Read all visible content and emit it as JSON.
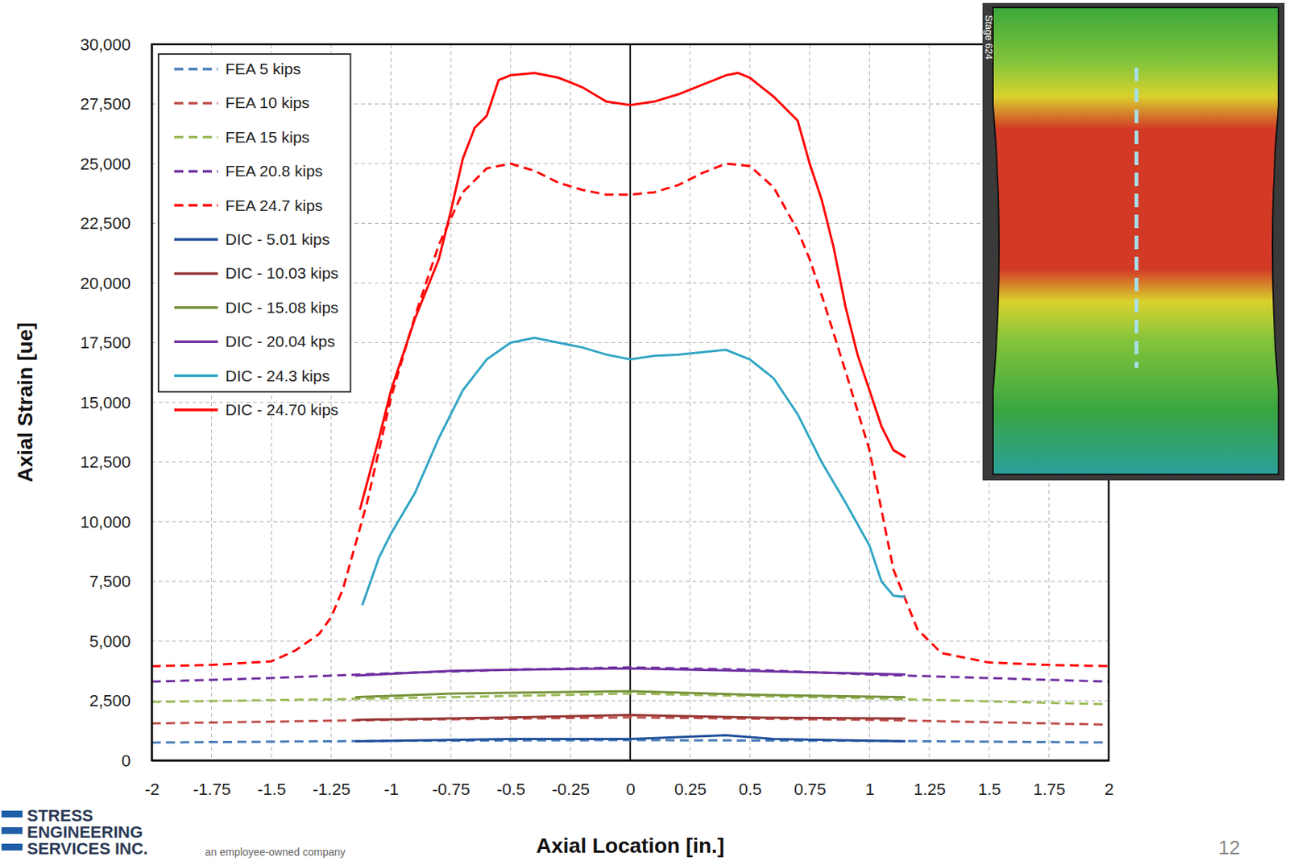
{
  "chart_data": {
    "type": "line",
    "x_label": "Axial Location [in.]",
    "y_label": "Axial Strain [ue]",
    "xlim": [
      -2,
      2
    ],
    "ylim": [
      0,
      30000
    ],
    "xticks": [
      -2,
      -1.75,
      -1.5,
      -1.25,
      -1,
      -0.75,
      -0.5,
      -0.25,
      0,
      0.25,
      0.5,
      0.75,
      1,
      1.25,
      1.5,
      1.75,
      2
    ],
    "yticks": [
      0,
      {
        "value": 2500,
        "label": "2,500"
      },
      {
        "value": 5000,
        "label": "5,000"
      },
      {
        "value": 7500,
        "label": "7,500"
      },
      {
        "value": 10000,
        "label": "10,000"
      },
      {
        "value": 12500,
        "label": "12,500"
      },
      {
        "value": 15000,
        "label": "15,000"
      },
      {
        "value": 17500,
        "label": "17,500"
      },
      {
        "value": 20000,
        "label": "20,000"
      },
      {
        "value": 22500,
        "label": "22,500"
      },
      {
        "value": 25000,
        "label": "25,000"
      },
      {
        "value": 27500,
        "label": "27,500"
      },
      {
        "value": 30000,
        "label": "30,000"
      }
    ],
    "grid": true,
    "legend": "top-left",
    "annotations": [
      "Stage 624",
      "STRESS",
      "ENGINEERING",
      "SERVICES INC.",
      "an employee-owned company",
      "12"
    ],
    "series": [
      {
        "name": "FEA 5 kips",
        "color": "#4a7ebb",
        "line_style": "dashed",
        "x": [
          -2,
          -1,
          0,
          1,
          2
        ],
        "values": [
          750,
          820,
          850,
          820,
          750
        ]
      },
      {
        "name": "FEA 10 kips",
        "color": "#c0504d",
        "line_style": "dashed",
        "x": [
          -2,
          -1,
          0,
          1,
          2
        ],
        "values": [
          1550,
          1700,
          1800,
          1700,
          1500
        ]
      },
      {
        "name": "FEA 15 kips",
        "color": "#9bbb59",
        "line_style": "dashed",
        "x": [
          -2,
          -1,
          0,
          1,
          2
        ],
        "values": [
          2450,
          2600,
          2800,
          2600,
          2350
        ]
      },
      {
        "name": "FEA 20.8 kips",
        "color": "#7030a0",
        "line_style": "dashed",
        "x": [
          -2,
          -1.5,
          -1,
          -0.5,
          0,
          0.5,
          1,
          1.5,
          2
        ],
        "values": [
          3300,
          3450,
          3650,
          3800,
          3900,
          3800,
          3600,
          3450,
          3300
        ]
      },
      {
        "name": "FEA 24.7 kips",
        "color": "#ff0000",
        "line_style": "dashed",
        "x": [
          -2,
          -1.75,
          -1.5,
          -1.4,
          -1.3,
          -1.25,
          -1.2,
          -1.1,
          -1,
          -0.9,
          -0.8,
          -0.7,
          -0.6,
          -0.5,
          -0.4,
          -0.3,
          -0.2,
          -0.1,
          0,
          0.1,
          0.2,
          0.3,
          0.4,
          0.5,
          0.6,
          0.7,
          0.75,
          0.8,
          0.9,
          1,
          1.1,
          1.2,
          1.3,
          1.5,
          1.75,
          2
        ],
        "values": [
          3950,
          4000,
          4150,
          4600,
          5300,
          6000,
          7200,
          10800,
          15200,
          18600,
          21600,
          23800,
          24800,
          25000,
          24700,
          24200,
          23900,
          23700,
          23700,
          23800,
          24100,
          24600,
          25000,
          24900,
          24000,
          22200,
          21000,
          19500,
          16300,
          13000,
          8000,
          5500,
          4500,
          4100,
          4000,
          3950
        ]
      },
      {
        "name": "DIC - 5.01 kips",
        "color": "#1f4e99",
        "line_style": "solid",
        "x": [
          -1.15,
          -0.5,
          0,
          0.4,
          0.6,
          1.15
        ],
        "values": [
          800,
          900,
          900,
          1050,
          900,
          800
        ]
      },
      {
        "name": "DIC - 10.03 kips",
        "color": "#953735",
        "line_style": "solid",
        "x": [
          -1.15,
          -0.5,
          0,
          0.5,
          1.15
        ],
        "values": [
          1700,
          1800,
          1900,
          1800,
          1750
        ]
      },
      {
        "name": "DIC - 15.08 kips",
        "color": "#77933c",
        "line_style": "solid",
        "x": [
          -1.15,
          -0.75,
          0,
          0.5,
          1.15
        ],
        "values": [
          2650,
          2800,
          2900,
          2750,
          2650
        ]
      },
      {
        "name": "DIC - 20.04 kps",
        "color": "#7030a0",
        "line_style": "solid",
        "x": [
          -1.15,
          -0.75,
          -0.5,
          0,
          0.5,
          1.15
        ],
        "values": [
          3550,
          3750,
          3800,
          3850,
          3750,
          3600
        ]
      },
      {
        "name": "DIC - 24.3 kips",
        "color": "#31a5c4",
        "line_style": "solid",
        "x": [
          -1.12,
          -1.05,
          -1,
          -0.9,
          -0.8,
          -0.75,
          -0.7,
          -0.6,
          -0.5,
          -0.4,
          -0.3,
          -0.2,
          -0.1,
          0,
          0.1,
          0.2,
          0.3,
          0.4,
          0.5,
          0.6,
          0.7,
          0.8,
          0.9,
          1,
          1.05,
          1.1,
          1.15
        ],
        "values": [
          6500,
          8500,
          9500,
          11200,
          13500,
          14500,
          15500,
          16800,
          17500,
          17700,
          17500,
          17300,
          17000,
          16800,
          16950,
          17000,
          17100,
          17200,
          16800,
          16000,
          14500,
          12500,
          10800,
          9000,
          7500,
          6900,
          6850
        ]
      },
      {
        "name": "DIC - 24.70 kips",
        "color": "#ff0000",
        "line_style": "solid",
        "x": [
          -1.13,
          -1.05,
          -1,
          -0.9,
          -0.8,
          -0.75,
          -0.7,
          -0.65,
          -0.6,
          -0.55,
          -0.5,
          -0.4,
          -0.3,
          -0.2,
          -0.1,
          0,
          0.1,
          0.2,
          0.3,
          0.4,
          0.45,
          0.5,
          0.6,
          0.7,
          0.75,
          0.8,
          0.85,
          0.9,
          0.95,
          1,
          1.05,
          1.1,
          1.15
        ],
        "values": [
          10500,
          13500,
          15500,
          18500,
          21000,
          23000,
          25200,
          26500,
          27000,
          28500,
          28700,
          28800,
          28600,
          28200,
          27600,
          27450,
          27600,
          27900,
          28300,
          28700,
          28800,
          28600,
          27800,
          26800,
          25000,
          23500,
          21500,
          19000,
          17000,
          15500,
          14000,
          13000,
          12700
        ]
      }
    ]
  }
}
